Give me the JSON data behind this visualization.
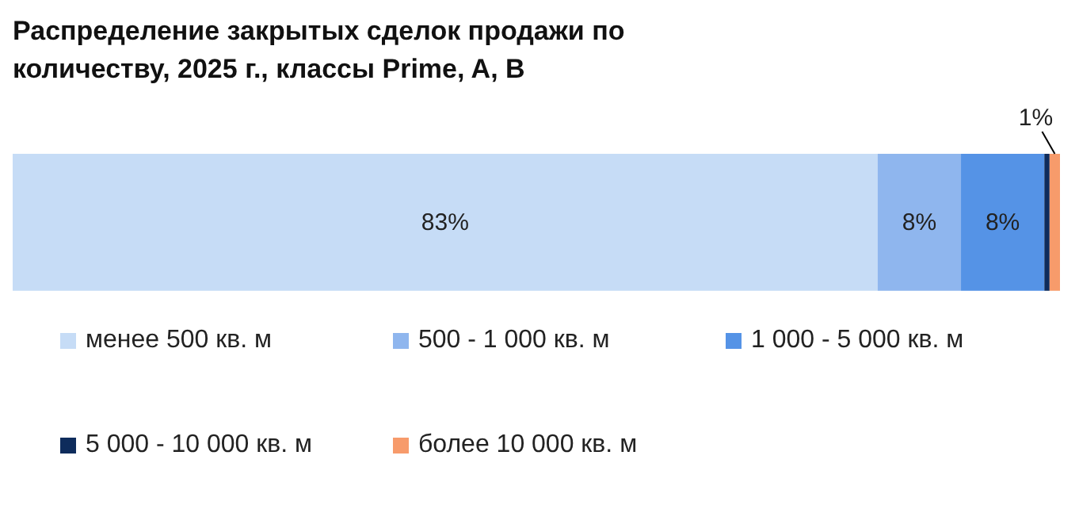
{
  "chart_data": {
    "type": "bar",
    "title": "Распределение закрытых сделок продажи по количеству, 2025 г., классы Prime, A, B",
    "orientation": "horizontal",
    "stacked": true,
    "categories": [
      null
    ],
    "xlim": [
      0,
      100.5
    ],
    "legend": "bottom",
    "series": [
      {
        "name": "менее 500 кв. м",
        "color": "#c6dcf6",
        "values": [
          83
        ],
        "value_labels": [
          "83%"
        ]
      },
      {
        "name": "500 - 1 000 кв. м",
        "color": "#8fb6ee",
        "values": [
          8
        ],
        "value_labels": [
          "8%"
        ]
      },
      {
        "name": "1 000 - 5 000 кв. м",
        "color": "#5593e6",
        "values": [
          8
        ],
        "value_labels": [
          "8%"
        ]
      },
      {
        "name": "5 000 - 10 000 кв. м",
        "color": "#0e2c5c",
        "values": [
          0.5
        ],
        "value_labels": [
          null
        ]
      },
      {
        "name": "более 10 000 кв. м",
        "color": "#f79b6b",
        "values": [
          1
        ],
        "value_labels": [
          "1%"
        ]
      }
    ]
  }
}
